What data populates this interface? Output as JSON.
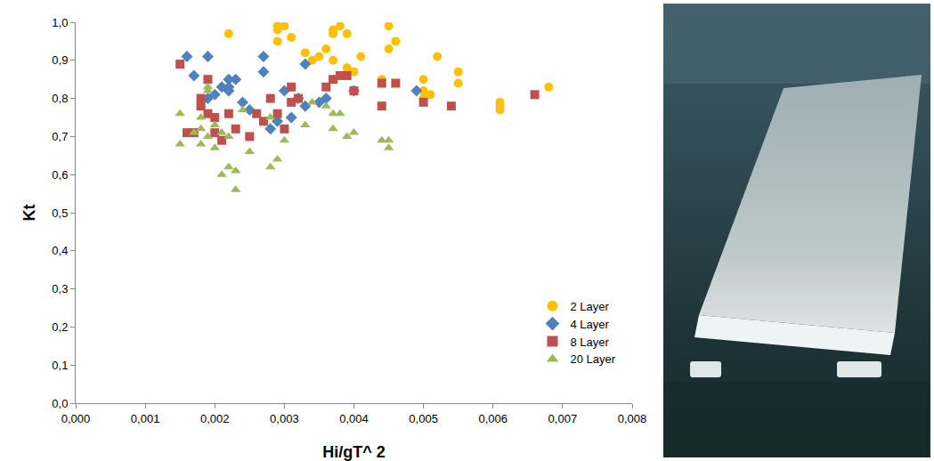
{
  "chart_data": {
    "type": "scatter",
    "x_label": "Hi/gT^ 2",
    "y_label": "Kt",
    "xlim": [
      0,
      0.008
    ],
    "ylim": [
      0,
      1.0
    ],
    "xticks": [
      {
        "value": 0,
        "label": "0,000"
      },
      {
        "value": 0.001,
        "label": "0,001"
      },
      {
        "value": 0.002,
        "label": "0,002"
      },
      {
        "value": 0.003,
        "label": "0,003"
      },
      {
        "value": 0.004,
        "label": "0,004"
      },
      {
        "value": 0.005,
        "label": "0,005"
      },
      {
        "value": 0.006,
        "label": "0,006"
      },
      {
        "value": 0.007,
        "label": "0,007"
      },
      {
        "value": 0.008,
        "label": "0,008"
      }
    ],
    "yticks": [
      {
        "value": 0,
        "label": "0,0"
      },
      {
        "value": 0.1,
        "label": "0,1"
      },
      {
        "value": 0.2,
        "label": "0,2"
      },
      {
        "value": 0.3,
        "label": "0,3"
      },
      {
        "value": 0.4,
        "label": "0,4"
      },
      {
        "value": 0.5,
        "label": "0,5"
      },
      {
        "value": 0.6,
        "label": "0,6"
      },
      {
        "value": 0.7,
        "label": "0,7"
      },
      {
        "value": 0.8,
        "label": "0,8"
      },
      {
        "value": 0.9,
        "label": "0,9"
      },
      {
        "value": 1.0,
        "label": "1,0"
      }
    ],
    "grid": false,
    "legend": "lower right",
    "series": [
      {
        "name": "2 Layer",
        "color": "#FFC000",
        "marker": "circle",
        "x": [
          0.0022,
          0.0029,
          0.0029,
          0.003,
          0.0031,
          0.0029,
          0.0033,
          0.0034,
          0.0035,
          0.0036,
          0.0037,
          0.0037,
          0.0038,
          0.0039,
          0.0037,
          0.0039,
          0.004,
          0.0041,
          0.0045,
          0.0046,
          0.0045,
          0.0044,
          0.005,
          0.005,
          0.0051,
          0.0052,
          0.0055,
          0.0055,
          0.0061,
          0.0061,
          0.0061,
          0.0068,
          0.005
        ],
        "values": [
          0.97,
          0.98,
          0.99,
          0.99,
          0.96,
          0.95,
          0.92,
          0.9,
          0.91,
          0.93,
          0.97,
          0.98,
          0.99,
          0.97,
          0.9,
          0.88,
          0.87,
          0.91,
          0.99,
          0.95,
          0.93,
          0.85,
          0.85,
          0.82,
          0.81,
          0.91,
          0.87,
          0.84,
          0.78,
          0.77,
          0.79,
          0.83,
          0.8
        ]
      },
      {
        "name": "4 Layer",
        "color": "#4F81BD",
        "marker": "diamond",
        "x": [
          0.0016,
          0.0017,
          0.0019,
          0.0019,
          0.002,
          0.0021,
          0.0022,
          0.0022,
          0.0023,
          0.0022,
          0.0024,
          0.0027,
          0.0027,
          0.0028,
          0.0029,
          0.003,
          0.0031,
          0.0032,
          0.0033,
          0.0033,
          0.0035,
          0.0036,
          0.004,
          0.0049,
          0.0025
        ],
        "values": [
          0.91,
          0.86,
          0.91,
          0.8,
          0.81,
          0.83,
          0.82,
          0.85,
          0.85,
          0.83,
          0.79,
          0.87,
          0.91,
          0.72,
          0.74,
          0.82,
          0.75,
          0.8,
          0.89,
          0.78,
          0.79,
          0.8,
          0.82,
          0.82,
          0.77
        ]
      },
      {
        "name": "8 Layer",
        "color": "#C0504D",
        "marker": "square",
        "x": [
          0.0015,
          0.0016,
          0.0017,
          0.0018,
          0.0018,
          0.0019,
          0.0019,
          0.002,
          0.002,
          0.0021,
          0.0022,
          0.0023,
          0.0025,
          0.0026,
          0.0027,
          0.0028,
          0.0029,
          0.003,
          0.0031,
          0.0031,
          0.0032,
          0.0036,
          0.0037,
          0.0038,
          0.0039,
          0.004,
          0.0044,
          0.0044,
          0.0046,
          0.005,
          0.0054,
          0.0066
        ],
        "values": [
          0.89,
          0.71,
          0.71,
          0.8,
          0.78,
          0.85,
          0.76,
          0.75,
          0.71,
          0.69,
          0.76,
          0.72,
          0.7,
          0.76,
          0.74,
          0.8,
          0.76,
          0.72,
          0.79,
          0.83,
          0.8,
          0.83,
          0.85,
          0.86,
          0.86,
          0.82,
          0.84,
          0.78,
          0.84,
          0.79,
          0.78,
          0.81
        ]
      },
      {
        "name": "20 Layer",
        "color": "#9BBB59",
        "marker": "triangle",
        "x": [
          0.0015,
          0.0015,
          0.0017,
          0.0018,
          0.0018,
          0.0018,
          0.0019,
          0.0019,
          0.0019,
          0.002,
          0.002,
          0.0021,
          0.0021,
          0.0022,
          0.0022,
          0.0023,
          0.0023,
          0.0024,
          0.0025,
          0.0028,
          0.0029,
          0.0028,
          0.003,
          0.0033,
          0.0034,
          0.0036,
          0.0037,
          0.0037,
          0.0038,
          0.0039,
          0.004,
          0.0044,
          0.0045,
          0.0045
        ],
        "values": [
          0.76,
          0.68,
          0.71,
          0.75,
          0.72,
          0.68,
          0.83,
          0.82,
          0.7,
          0.67,
          0.73,
          0.71,
          0.6,
          0.62,
          0.7,
          0.61,
          0.56,
          0.77,
          0.66,
          0.62,
          0.64,
          0.75,
          0.69,
          0.73,
          0.79,
          0.78,
          0.72,
          0.76,
          0.76,
          0.7,
          0.71,
          0.69,
          0.69,
          0.67
        ]
      }
    ]
  }
}
